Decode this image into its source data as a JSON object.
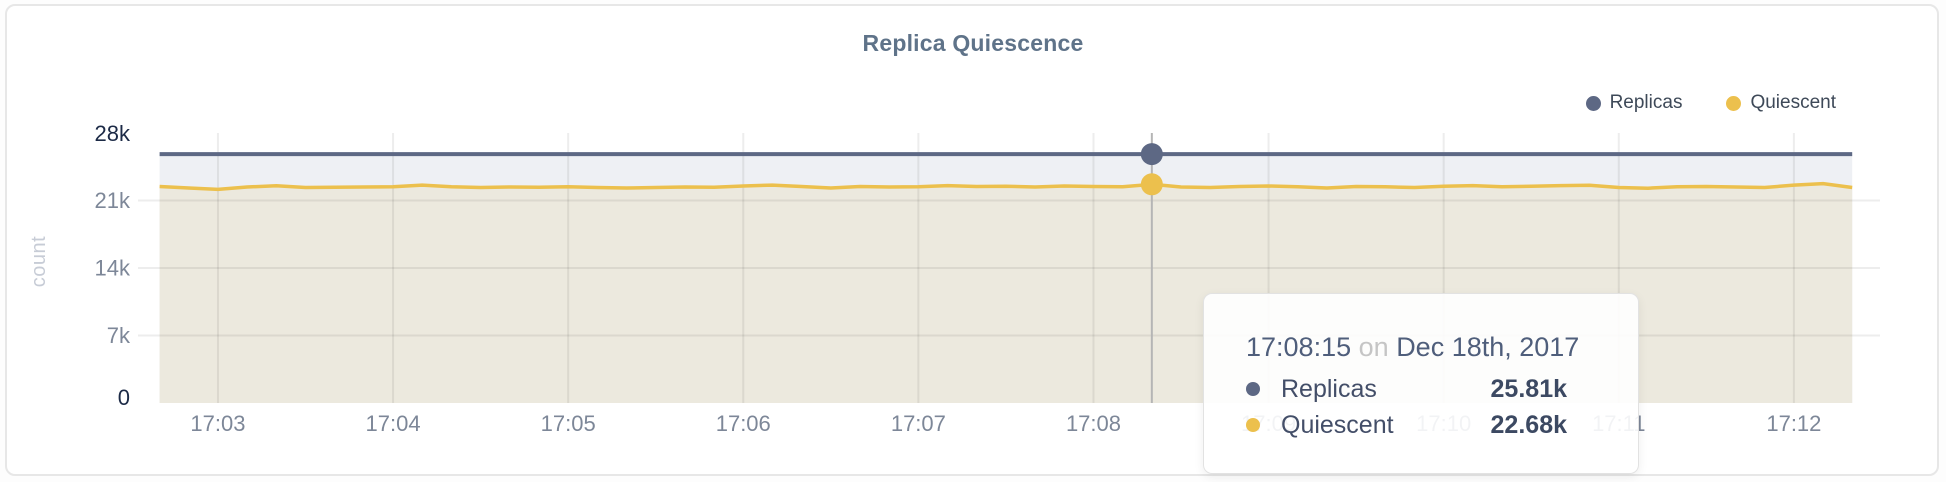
{
  "accent_colors": {
    "replicas": "#5d6884",
    "quiescent": "#ecc04d",
    "replicas_fill": "#eef0f4",
    "quiescent_fill": "#ece9de",
    "title_text": "#5f7389",
    "grid": "rgba(20,20,20,0.075)",
    "crosshair": "#b5b5b5"
  },
  "legend": {
    "items": [
      {
        "label": "Replicas",
        "color": "#5d6884"
      },
      {
        "label": "Quiescent",
        "color": "#ecc04d"
      }
    ]
  },
  "tooltip": {
    "time": "17:08:15",
    "connector": "on",
    "date": "Dec 18th, 2017",
    "rows": [
      {
        "label": "Replicas",
        "value": "25.81k",
        "color": "#5d6884"
      },
      {
        "label": "Quiescent",
        "value": "22.68k",
        "color": "#ecc04d"
      }
    ]
  },
  "chart_data": {
    "type": "area",
    "title": "Replica Quiescence",
    "xlabel": "",
    "ylabel": "count",
    "ylim": [
      0,
      28000
    ],
    "grid": true,
    "legend_position": "top-right",
    "yticks": [
      {
        "label": "28k",
        "value": 28000,
        "emphasis": true
      },
      {
        "label": "21k",
        "value": 21000,
        "emphasis": false
      },
      {
        "label": "14k",
        "value": 14000,
        "emphasis": false
      },
      {
        "label": "7k",
        "value": 7000,
        "emphasis": false
      },
      {
        "label": "0",
        "value": 0,
        "emphasis": true
      }
    ],
    "xticks": [
      "17:03",
      "17:04",
      "17:05",
      "17:06",
      "17:07",
      "17:08",
      "17:09",
      "17:10",
      "17:11",
      "17:12"
    ],
    "x_start_s": 160,
    "x_step_s": 10,
    "series": [
      {
        "name": "Replicas",
        "color": "#5d6884",
        "fill": "#eef0f4",
        "constant": 25810,
        "points": 59
      },
      {
        "name": "Quiescent",
        "color": "#ecc04d",
        "fill": "#ece9de",
        "values": [
          22450,
          22300,
          22150,
          22400,
          22520,
          22350,
          22380,
          22400,
          22420,
          22600,
          22420,
          22350,
          22400,
          22380,
          22420,
          22350,
          22300,
          22350,
          22400,
          22380,
          22500,
          22600,
          22450,
          22300,
          22450,
          22400,
          22420,
          22550,
          22450,
          22480,
          22400,
          22500,
          22450,
          22420,
          22680,
          22400,
          22350,
          22450,
          22500,
          22420,
          22300,
          22450,
          22420,
          22350,
          22480,
          22550,
          22420,
          22480,
          22550,
          22580,
          22350,
          22280,
          22420,
          22450,
          22400,
          22350,
          22600,
          22750,
          22350
        ]
      }
    ],
    "hover": {
      "index": 34,
      "time": "17:08:15",
      "values": {
        "Replicas": 25810,
        "Quiescent": 22680
      }
    }
  }
}
